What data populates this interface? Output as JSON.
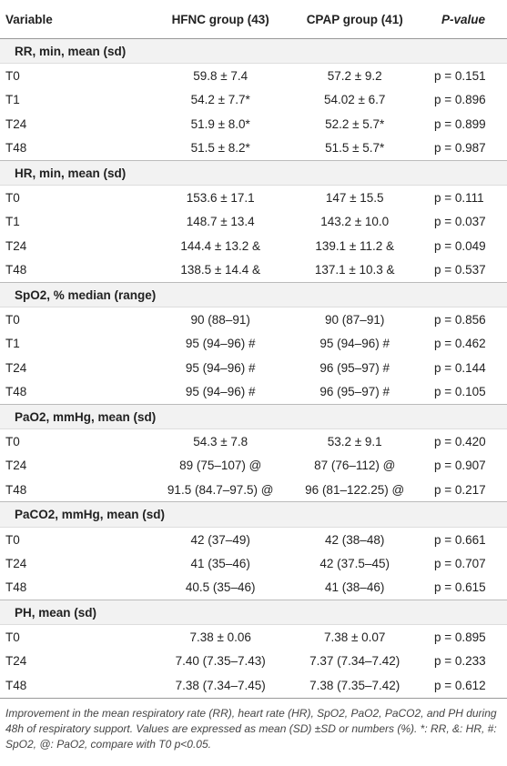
{
  "table": {
    "header": [
      "Variable",
      "HFNC group (43)",
      "CPAP group (41)",
      "P-value"
    ],
    "sections": [
      {
        "title": "RR, min, mean (sd)",
        "rows": [
          [
            "T0",
            "59.8 ± 7.4",
            "57.2 ± 9.2",
            "p = 0.151"
          ],
          [
            "T1",
            "54.2 ± 7.7*",
            "54.02 ± 6.7",
            "p = 0.896"
          ],
          [
            "T24",
            "51.9 ± 8.0*",
            "52.2 ± 5.7*",
            "p = 0.899"
          ],
          [
            "T48",
            "51.5 ± 8.2*",
            "51.5 ± 5.7*",
            "p = 0.987"
          ]
        ]
      },
      {
        "title": "HR, min, mean (sd)",
        "rows": [
          [
            "T0",
            "153.6 ± 17.1",
            "147 ± 15.5",
            "p = 0.111"
          ],
          [
            "T1",
            "148.7 ± 13.4",
            "143.2 ± 10.0",
            "p = 0.037"
          ],
          [
            "T24",
            "144.4 ± 13.2 &",
            "139.1 ± 11.2 &",
            "p = 0.049"
          ],
          [
            "T48",
            "138.5 ± 14.4 &",
            "137.1 ± 10.3 &",
            "p = 0.537"
          ]
        ]
      },
      {
        "title": "SpO2, % median (range)",
        "rows": [
          [
            "T0",
            "90 (88–91)",
            "90 (87–91)",
            "p = 0.856"
          ],
          [
            "T1",
            "95 (94–96) #",
            "95 (94–96) #",
            "p = 0.462"
          ],
          [
            "T24",
            "95 (94–96) #",
            "96 (95–97) #",
            "p = 0.144"
          ],
          [
            "T48",
            "95 (94–96) #",
            "96 (95–97) #",
            "p = 0.105"
          ]
        ]
      },
      {
        "title": "PaO2, mmHg, mean (sd)",
        "rows": [
          [
            "T0",
            "54.3 ± 7.8",
            "53.2 ± 9.1",
            "p = 0.420"
          ],
          [
            "T24",
            "89 (75–107) @",
            "87 (76–112) @",
            "p = 0.907"
          ],
          [
            "T48",
            "91.5 (84.7–97.5) @",
            "96 (81–122.25) @",
            "p = 0.217"
          ]
        ]
      },
      {
        "title": "PaCO2, mmHg, mean (sd)",
        "rows": [
          [
            "T0",
            "42 (37–49)",
            "42 (38–48)",
            "p = 0.661"
          ],
          [
            "T24",
            "41 (35–46)",
            "42 (37.5–45)",
            "p = 0.707"
          ],
          [
            "T48",
            "40.5 (35–46)",
            "41 (38–46)",
            "p = 0.615"
          ]
        ]
      },
      {
        "title": "PH, mean (sd)",
        "rows": [
          [
            "T0",
            "7.38 ± 0.06",
            "7.38 ± 0.07",
            "p = 0.895"
          ],
          [
            "T24",
            "7.40 (7.35–7.43)",
            "7.37 (7.34–7.42)",
            "p = 0.233"
          ],
          [
            "T48",
            "7.38 (7.34–7.45)",
            "7.38 (7.35–7.42)",
            "p = 0.612"
          ]
        ]
      }
    ]
  },
  "footnote": "Improvement in the mean respiratory rate (RR), heart rate (HR), SpO2, PaO2, PaCO2, and PH during 48h of respiratory support. Values are expressed as mean (SD) ±SD or numbers (%). *: RR, &: HR, #: SpO2, @: PaO2, compare with T0 p<0.05."
}
